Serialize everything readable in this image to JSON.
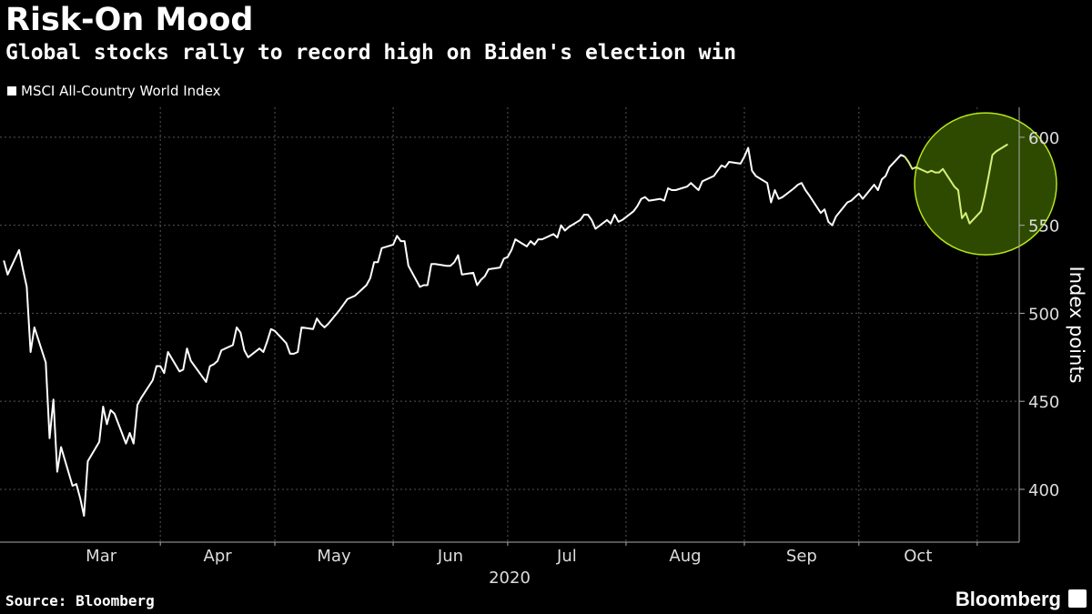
{
  "header": {
    "title": "Risk-On Mood",
    "subtitle": "Global stocks rally to record high on Biden's election win"
  },
  "footer": {
    "source": "Source: Bloomberg",
    "brand": "Bloomberg"
  },
  "colors": {
    "background": "#000000",
    "line": "#ffffff",
    "highlight_fill": "#2e4a00",
    "highlight_stroke": "#b5e61d",
    "highlight_line": "#d6f07a",
    "grid": "#555555"
  },
  "chart_data": {
    "type": "line",
    "title": "Risk-On Mood",
    "subtitle": "Global stocks rally to record high on Biden's election win",
    "xlabel": "2020",
    "ylabel": "Index points",
    "ylim": [
      370,
      617
    ],
    "yticks": [
      400,
      450,
      500,
      550,
      600
    ],
    "y_axis_side": "right",
    "grid": "dotted",
    "legend": {
      "placement": "top-left"
    },
    "x_ticks": [
      "Mar",
      "Apr",
      "May",
      "Jun",
      "Jul",
      "Aug",
      "Sep",
      "Oct"
    ],
    "x_tick_dates": [
      "2020-03-01",
      "2020-04-01",
      "2020-05-01",
      "2020-06-01",
      "2020-07-01",
      "2020-08-01",
      "2020-09-01",
      "2020-10-01"
    ],
    "highlight": {
      "shape": "circle",
      "from": "2020-10-26",
      "to": "2020-11-09"
    },
    "series": [
      {
        "name": "MSCI All-Country World Index",
        "color": "#ffffff",
        "points": [
          [
            "2020-02-20",
            530
          ],
          [
            "2020-02-21",
            522
          ],
          [
            "2020-02-24",
            536
          ],
          [
            "2020-02-25",
            525
          ],
          [
            "2020-02-26",
            515
          ],
          [
            "2020-02-27",
            478
          ],
          [
            "2020-02-28",
            492
          ],
          [
            "2020-03-02",
            472
          ],
          [
            "2020-03-03",
            429
          ],
          [
            "2020-03-04",
            451
          ],
          [
            "2020-03-05",
            410
          ],
          [
            "2020-03-06",
            424
          ],
          [
            "2020-03-09",
            402
          ],
          [
            "2020-03-10",
            403
          ],
          [
            "2020-03-11",
            395
          ],
          [
            "2020-03-12",
            385
          ],
          [
            "2020-03-13",
            416
          ],
          [
            "2020-03-16",
            427
          ],
          [
            "2020-03-17",
            447
          ],
          [
            "2020-03-18",
            437
          ],
          [
            "2020-03-19",
            445
          ],
          [
            "2020-03-20",
            443
          ],
          [
            "2020-03-23",
            426
          ],
          [
            "2020-03-24",
            432
          ],
          [
            "2020-03-25",
            426
          ],
          [
            "2020-03-26",
            448
          ],
          [
            "2020-03-27",
            452
          ],
          [
            "2020-03-30",
            462
          ],
          [
            "2020-03-31",
            470
          ],
          [
            "2020-04-01",
            470
          ],
          [
            "2020-04-02",
            466
          ],
          [
            "2020-04-03",
            478
          ],
          [
            "2020-04-06",
            467
          ],
          [
            "2020-04-07",
            468
          ],
          [
            "2020-04-08",
            480
          ],
          [
            "2020-04-09",
            473
          ],
          [
            "2020-04-13",
            461
          ],
          [
            "2020-04-14",
            470
          ],
          [
            "2020-04-15",
            471
          ],
          [
            "2020-04-16",
            473
          ],
          [
            "2020-04-17",
            479
          ],
          [
            "2020-04-20",
            482
          ],
          [
            "2020-04-21",
            492
          ],
          [
            "2020-04-22",
            489
          ],
          [
            "2020-04-23",
            479
          ],
          [
            "2020-04-24",
            475
          ],
          [
            "2020-04-27",
            480
          ],
          [
            "2020-04-28",
            478
          ],
          [
            "2020-04-29",
            484
          ],
          [
            "2020-04-30",
            491
          ],
          [
            "2020-05-01",
            490
          ],
          [
            "2020-05-04",
            483
          ],
          [
            "2020-05-05",
            477
          ],
          [
            "2020-05-06",
            477
          ],
          [
            "2020-05-07",
            478
          ],
          [
            "2020-05-08",
            492
          ],
          [
            "2020-05-11",
            491
          ],
          [
            "2020-05-12",
            497
          ],
          [
            "2020-05-13",
            494
          ],
          [
            "2020-05-14",
            492
          ],
          [
            "2020-05-15",
            494
          ],
          [
            "2020-05-18",
            502
          ],
          [
            "2020-05-19",
            505
          ],
          [
            "2020-05-20",
            508
          ],
          [
            "2020-05-21",
            509
          ],
          [
            "2020-05-22",
            510
          ],
          [
            "2020-05-25",
            516
          ],
          [
            "2020-05-26",
            520
          ],
          [
            "2020-05-27",
            529
          ],
          [
            "2020-05-28",
            529
          ],
          [
            "2020-05-29",
            537
          ],
          [
            "2020-06-01",
            539
          ],
          [
            "2020-06-02",
            544
          ],
          [
            "2020-06-03",
            541
          ],
          [
            "2020-06-04",
            541
          ],
          [
            "2020-06-05",
            527
          ],
          [
            "2020-06-08",
            515
          ],
          [
            "2020-06-09",
            516
          ],
          [
            "2020-06-10",
            516
          ],
          [
            "2020-06-11",
            528
          ],
          [
            "2020-06-12",
            528
          ],
          [
            "2020-06-15",
            527
          ],
          [
            "2020-06-16",
            527
          ],
          [
            "2020-06-17",
            529
          ],
          [
            "2020-06-18",
            533
          ],
          [
            "2020-06-19",
            522
          ],
          [
            "2020-06-22",
            523
          ],
          [
            "2020-06-23",
            516
          ],
          [
            "2020-06-24",
            519
          ],
          [
            "2020-06-25",
            521
          ],
          [
            "2020-06-26",
            525
          ],
          [
            "2020-06-29",
            526
          ],
          [
            "2020-06-30",
            531
          ],
          [
            "2020-07-01",
            532
          ],
          [
            "2020-07-02",
            536
          ],
          [
            "2020-07-03",
            542
          ],
          [
            "2020-07-06",
            538
          ],
          [
            "2020-07-07",
            541
          ],
          [
            "2020-07-08",
            539
          ],
          [
            "2020-07-09",
            542
          ],
          [
            "2020-07-10",
            542
          ],
          [
            "2020-07-13",
            545
          ],
          [
            "2020-07-14",
            543
          ],
          [
            "2020-07-15",
            550
          ],
          [
            "2020-07-16",
            547
          ],
          [
            "2020-07-17",
            549
          ],
          [
            "2020-07-20",
            553
          ],
          [
            "2020-07-21",
            556
          ],
          [
            "2020-07-22",
            556
          ],
          [
            "2020-07-23",
            553
          ],
          [
            "2020-07-24",
            548
          ],
          [
            "2020-07-27",
            553
          ],
          [
            "2020-07-28",
            551
          ],
          [
            "2020-07-29",
            556
          ],
          [
            "2020-07-30",
            552
          ],
          [
            "2020-07-31",
            553
          ],
          [
            "2020-08-03",
            558
          ],
          [
            "2020-08-04",
            561
          ],
          [
            "2020-08-05",
            565
          ],
          [
            "2020-08-06",
            566
          ],
          [
            "2020-08-07",
            564
          ],
          [
            "2020-08-10",
            565
          ],
          [
            "2020-08-11",
            564
          ],
          [
            "2020-08-12",
            571
          ],
          [
            "2020-08-13",
            570
          ],
          [
            "2020-08-14",
            570
          ],
          [
            "2020-08-17",
            572
          ],
          [
            "2020-08-18",
            574
          ],
          [
            "2020-08-19",
            572
          ],
          [
            "2020-08-20",
            570
          ],
          [
            "2020-08-21",
            575
          ],
          [
            "2020-08-24",
            578
          ],
          [
            "2020-08-25",
            581
          ],
          [
            "2020-08-26",
            584
          ],
          [
            "2020-08-27",
            583
          ],
          [
            "2020-08-28",
            586
          ],
          [
            "2020-08-31",
            585
          ],
          [
            "2020-09-01",
            589
          ],
          [
            "2020-09-02",
            594
          ],
          [
            "2020-09-03",
            581
          ],
          [
            "2020-09-04",
            578
          ],
          [
            "2020-09-07",
            574
          ],
          [
            "2020-09-08",
            563
          ],
          [
            "2020-09-09",
            570
          ],
          [
            "2020-09-10",
            565
          ],
          [
            "2020-09-11",
            566
          ],
          [
            "2020-09-14",
            571
          ],
          [
            "2020-09-15",
            573
          ],
          [
            "2020-09-16",
            574
          ],
          [
            "2020-09-17",
            570
          ],
          [
            "2020-09-18",
            567
          ],
          [
            "2020-09-21",
            557
          ],
          [
            "2020-09-22",
            559
          ],
          [
            "2020-09-23",
            552
          ],
          [
            "2020-09-24",
            550
          ],
          [
            "2020-09-25",
            555
          ],
          [
            "2020-09-28",
            563
          ],
          [
            "2020-09-29",
            564
          ],
          [
            "2020-09-30",
            566
          ],
          [
            "2020-10-01",
            568
          ],
          [
            "2020-10-02",
            565
          ],
          [
            "2020-10-05",
            573
          ],
          [
            "2020-10-06",
            570
          ],
          [
            "2020-10-07",
            576
          ],
          [
            "2020-10-08",
            578
          ],
          [
            "2020-10-09",
            583
          ],
          [
            "2020-10-12",
            590
          ],
          [
            "2020-10-13",
            589
          ],
          [
            "2020-10-14",
            586
          ],
          [
            "2020-10-15",
            582
          ],
          [
            "2020-10-16",
            583
          ],
          [
            "2020-10-19",
            580
          ],
          [
            "2020-10-20",
            581
          ],
          [
            "2020-10-21",
            580
          ],
          [
            "2020-10-22",
            580
          ],
          [
            "2020-10-23",
            582
          ],
          [
            "2020-10-26",
            572
          ],
          [
            "2020-10-27",
            570
          ],
          [
            "2020-10-28",
            554
          ],
          [
            "2020-10-29",
            557
          ],
          [
            "2020-10-30",
            551
          ],
          [
            "2020-11-02",
            558
          ],
          [
            "2020-11-03",
            567
          ],
          [
            "2020-11-04",
            578
          ],
          [
            "2020-11-05",
            590
          ],
          [
            "2020-11-06",
            592
          ],
          [
            "2020-11-09",
            596
          ]
        ]
      }
    ]
  }
}
